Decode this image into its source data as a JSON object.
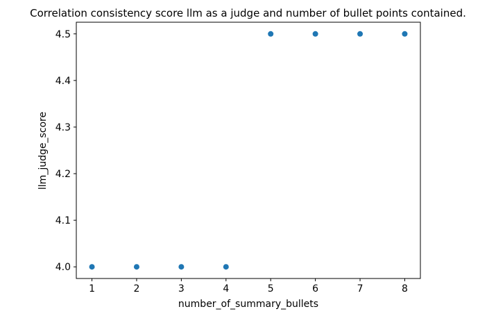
{
  "figure": {
    "background": "#ffffff"
  },
  "chart_data": {
    "type": "scatter",
    "title": "Correlation consistency score llm as a judge and number of bullet points contained.",
    "xlabel": "number_of_summary_bullets",
    "ylabel": "llm_judge_score",
    "x": [
      1,
      2,
      3,
      4,
      5,
      6,
      7,
      8
    ],
    "y": [
      4.0,
      4.0,
      4.0,
      4.0,
      4.5,
      4.5,
      4.5,
      4.5
    ],
    "x_ticks": [
      {
        "value": 1,
        "label": "1"
      },
      {
        "value": 2,
        "label": "2"
      },
      {
        "value": 3,
        "label": "3"
      },
      {
        "value": 4,
        "label": "4"
      },
      {
        "value": 5,
        "label": "5"
      },
      {
        "value": 6,
        "label": "6"
      },
      {
        "value": 7,
        "label": "7"
      },
      {
        "value": 8,
        "label": "8"
      }
    ],
    "y_ticks": [
      {
        "value": 4.0,
        "label": "4.0"
      },
      {
        "value": 4.1,
        "label": "4.1"
      },
      {
        "value": 4.2,
        "label": "4.2"
      },
      {
        "value": 4.3,
        "label": "4.3"
      },
      {
        "value": 4.4,
        "label": "4.4"
      },
      {
        "value": 4.5,
        "label": "4.5"
      }
    ],
    "xlim": [
      0.65,
      8.35
    ],
    "ylim": [
      3.975,
      4.525
    ],
    "grid": false,
    "legend": false,
    "marker": {
      "color": "#1f77b4",
      "radius_px": 4
    },
    "axis_color": "#000000",
    "text_color": "#000000"
  }
}
